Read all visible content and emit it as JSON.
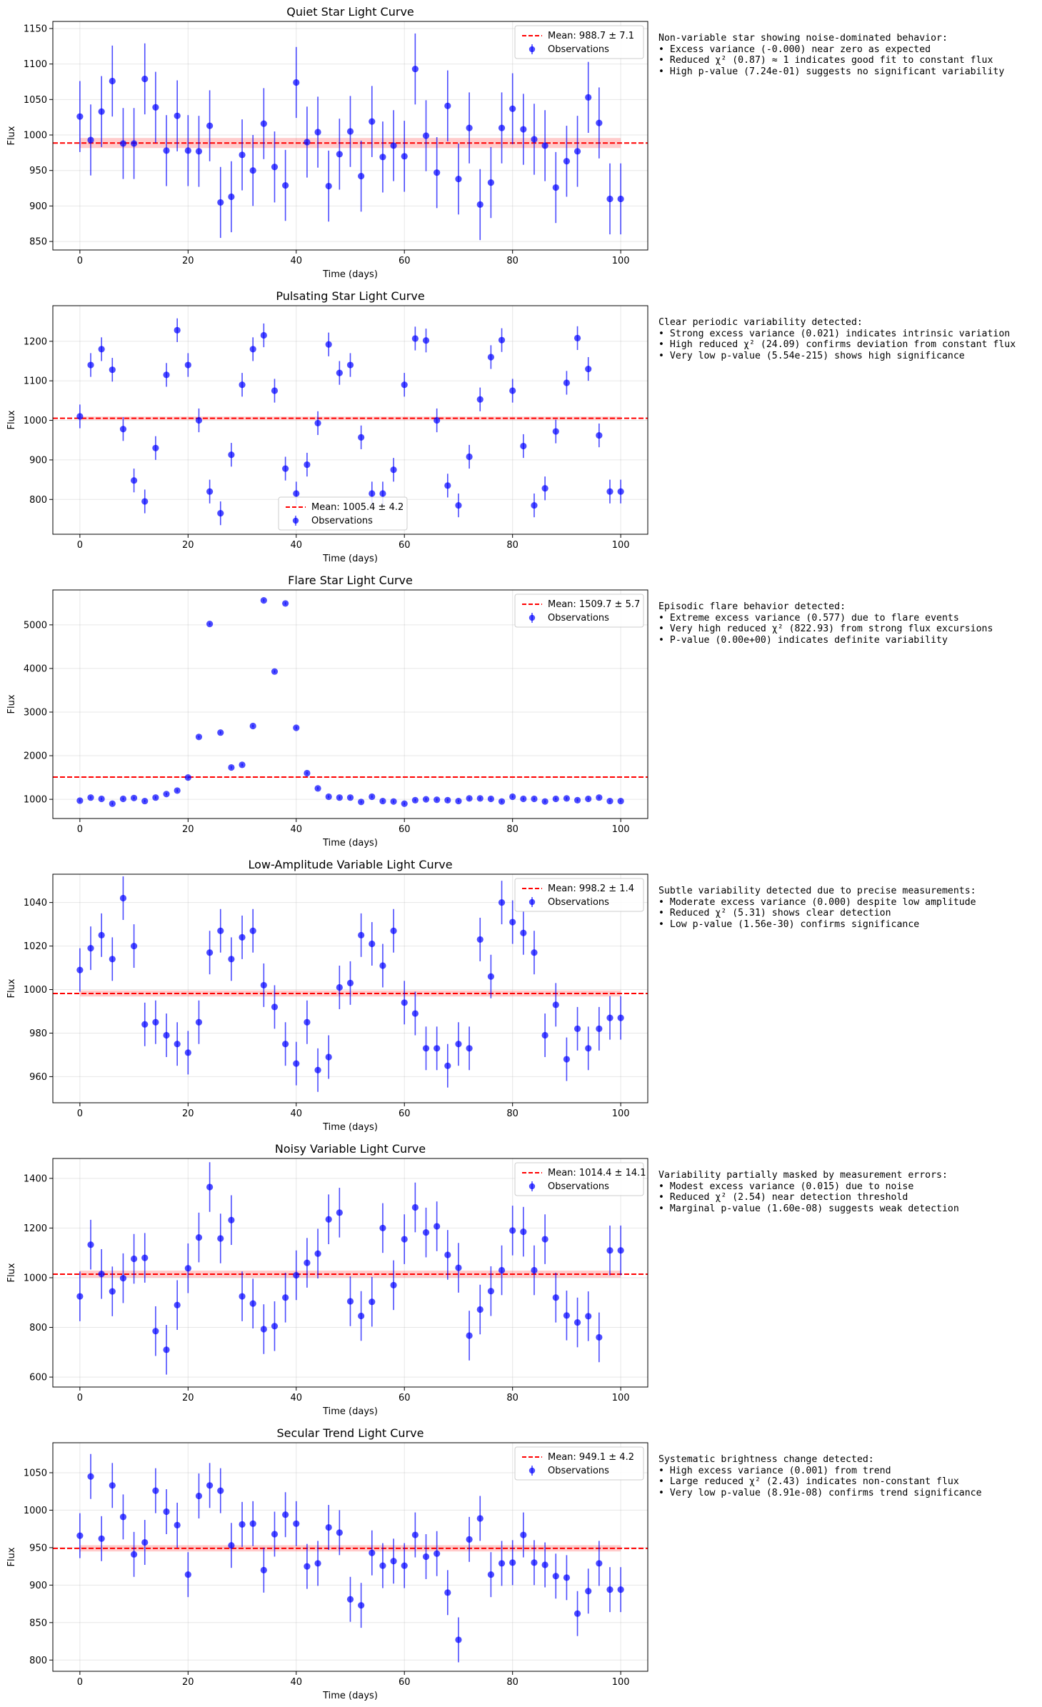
{
  "panels": [
    {
      "title": "Quiet Star Light Curve",
      "xlabel": "Time (days)",
      "ylabel": "Flux",
      "legend": "top-right",
      "mean_label": "Mean: 988.7 ± 7.1",
      "obs_label": "Observations",
      "annotation": "Non-variable star showing noise-dominated behavior:\n• Excess variance (-0.000) near zero as expected\n• Reduced χ² (0.87) ≈ 1 indicates good fit to constant flux\n• High p-value (7.24e-01) suggests no significant variability"
    },
    {
      "title": "Pulsating Star Light Curve",
      "xlabel": "Time (days)",
      "ylabel": "Flux",
      "legend": "lower-center",
      "mean_label": "Mean: 1005.4 ± 4.2",
      "obs_label": "Observations",
      "annotation": "Clear periodic variability detected:\n• Strong excess variance (0.021) indicates intrinsic variation\n• High reduced χ² (24.09) confirms deviation from constant flux\n• Very low p-value (5.54e-215) shows high significance"
    },
    {
      "title": "Flare Star Light Curve",
      "xlabel": "Time (days)",
      "ylabel": "Flux",
      "legend": "top-right",
      "mean_label": "Mean: 1509.7 ± 5.7",
      "obs_label": "Observations",
      "annotation": "Episodic flare behavior detected:\n• Extreme excess variance (0.577) due to flare events\n• Very high reduced χ² (822.93) from strong flux excursions\n• P-value (0.00e+00) indicates definite variability"
    },
    {
      "title": "Low-Amplitude Variable Light Curve",
      "xlabel": "Time (days)",
      "ylabel": "Flux",
      "legend": "top-right",
      "mean_label": "Mean: 998.2 ± 1.4",
      "obs_label": "Observations",
      "annotation": "Subtle variability detected due to precise measurements:\n• Moderate excess variance (0.000) despite low amplitude\n• Reduced χ² (5.31) shows clear detection\n• Low p-value (1.56e-30) confirms significance"
    },
    {
      "title": "Noisy Variable Light Curve",
      "xlabel": "Time (days)",
      "ylabel": "Flux",
      "legend": "top-right",
      "mean_label": "Mean: 1014.4 ± 14.1",
      "obs_label": "Observations",
      "annotation": "Variability partially masked by measurement errors:\n• Modest excess variance (0.015) due to noise\n• Reduced χ² (2.54) near detection threshold\n• Marginal p-value (1.60e-08) suggests weak detection"
    },
    {
      "title": "Secular Trend Light Curve",
      "xlabel": "Time (days)",
      "ylabel": "Flux",
      "legend": "top-right",
      "mean_label": "Mean: 949.1 ± 4.2",
      "obs_label": "Observations",
      "annotation": "Systematic brightness change detected:\n• High excess variance (0.001) from trend\n• Large reduced χ² (2.43) indicates non-constant flux\n• Very low p-value (8.91e-08) confirms trend significance"
    }
  ],
  "chart_data": [
    {
      "type": "scatter",
      "title": "Quiet Star Light Curve",
      "xlabel": "Time (days)",
      "ylabel": "Flux",
      "xlim": [
        -5,
        105
      ],
      "ylim": [
        838,
        1160
      ],
      "xticks": [
        0,
        20,
        40,
        60,
        80,
        100
      ],
      "yticks": [
        850,
        900,
        950,
        1000,
        1050,
        1100,
        1150
      ],
      "grid": true,
      "mean": 988.7,
      "mean_err": 7.1,
      "marker_color": "#0000ff",
      "mean_color": "#ff0000",
      "series": [
        {
          "name": "Observations",
          "error": 50,
          "x": [
            0,
            2,
            4,
            6,
            8,
            10,
            12,
            14,
            16,
            18,
            20,
            22,
            24,
            26,
            28,
            30,
            32,
            34,
            36,
            38,
            40,
            42,
            44,
            46,
            48,
            50,
            52,
            54,
            56,
            58,
            60,
            62,
            64,
            66,
            68,
            70,
            72,
            74,
            76,
            78,
            80,
            82,
            84,
            86,
            88,
            90,
            92,
            94,
            96,
            98,
            100
          ],
          "y": [
            1026,
            993,
            1033,
            1076,
            988,
            988,
            1079,
            1039,
            978,
            1027,
            978,
            977,
            1013,
            905,
            913,
            972,
            950,
            1016,
            955,
            929,
            1074,
            990,
            1004,
            928,
            973,
            1005,
            942,
            1019,
            969,
            985,
            970,
            1093,
            999,
            947,
            1041,
            938,
            1010,
            902,
            933,
            1010,
            1037,
            1008,
            994,
            985,
            926,
            963,
            977,
            1053,
            1017,
            910,
            910
          ]
        }
      ]
    },
    {
      "type": "scatter",
      "title": "Pulsating Star Light Curve",
      "xlabel": "Time (days)",
      "ylabel": "Flux",
      "xlim": [
        -5,
        105
      ],
      "ylim": [
        712,
        1290
      ],
      "xticks": [
        0,
        20,
        40,
        60,
        80,
        100
      ],
      "yticks": [
        800,
        900,
        1000,
        1100,
        1200
      ],
      "grid": true,
      "mean": 1005.4,
      "mean_err": 4.2,
      "marker_color": "#0000ff",
      "mean_color": "#ff0000",
      "series": [
        {
          "name": "Observations",
          "error": 30,
          "x": [
            0,
            2,
            4,
            6,
            8,
            10,
            12,
            14,
            16,
            18,
            20,
            22,
            24,
            26,
            28,
            30,
            32,
            34,
            36,
            38,
            40,
            42,
            44,
            46,
            48,
            50,
            52,
            54,
            56,
            58,
            60,
            62,
            64,
            66,
            68,
            70,
            72,
            74,
            76,
            78,
            80,
            82,
            84,
            86,
            88,
            90,
            92,
            94,
            96,
            98,
            100
          ],
          "y": [
            1010,
            1140,
            1180,
            1128,
            978,
            848,
            795,
            930,
            1115,
            1228,
            1140,
            1000,
            820,
            765,
            913,
            1090,
            1180,
            1215,
            1075,
            878,
            815,
            888,
            993,
            1192,
            1120,
            1140,
            957,
            815,
            815,
            875,
            1090,
            1207,
            1202,
            1000,
            835,
            785,
            908,
            1053,
            1160,
            1203,
            1075,
            935,
            785,
            828,
            972,
            1095,
            1208,
            1130,
            962,
            820,
            820
          ]
        }
      ]
    },
    {
      "type": "scatter",
      "title": "Flare Star Light Curve",
      "xlabel": "Time (days)",
      "ylabel": "Flux",
      "xlim": [
        -5,
        105
      ],
      "ylim": [
        560,
        5800
      ],
      "xticks": [
        0,
        20,
        40,
        60,
        80,
        100
      ],
      "yticks": [
        1000,
        2000,
        3000,
        4000,
        5000
      ],
      "grid": true,
      "mean": 1509.7,
      "mean_err": 5.7,
      "marker_color": "#0000ff",
      "mean_color": "#ff0000",
      "series": [
        {
          "name": "Observations",
          "error": 30,
          "x": [
            0,
            2,
            4,
            6,
            8,
            10,
            12,
            14,
            16,
            18,
            20,
            22,
            24,
            26,
            28,
            30,
            32,
            34,
            36,
            38,
            40,
            42,
            44,
            46,
            48,
            50,
            52,
            54,
            56,
            58,
            60,
            62,
            64,
            66,
            68,
            70,
            72,
            74,
            76,
            78,
            80,
            82,
            84,
            86,
            88,
            90,
            92,
            94,
            96,
            98,
            100
          ],
          "y": [
            970,
            1040,
            1010,
            900,
            1010,
            1030,
            960,
            1040,
            1120,
            1200,
            1500,
            2430,
            5020,
            2530,
            1730,
            1790,
            2680,
            5560,
            3930,
            5490,
            2640,
            1600,
            1250,
            1060,
            1040,
            1040,
            940,
            1060,
            960,
            950,
            900,
            980,
            1000,
            990,
            980,
            960,
            1020,
            1020,
            1010,
            950,
            1060,
            1010,
            1010,
            950,
            1010,
            1020,
            980,
            1010,
            1040,
            960,
            960
          ]
        }
      ]
    },
    {
      "type": "scatter",
      "title": "Low-Amplitude Variable Light Curve",
      "xlabel": "Time (days)",
      "ylabel": "Flux",
      "xlim": [
        -5,
        105
      ],
      "ylim": [
        948,
        1053
      ],
      "xticks": [
        0,
        20,
        40,
        60,
        80,
        100
      ],
      "yticks": [
        960,
        980,
        1000,
        1020,
        1040
      ],
      "grid": true,
      "mean": 998.2,
      "mean_err": 1.4,
      "marker_color": "#0000ff",
      "mean_color": "#ff0000",
      "series": [
        {
          "name": "Observations",
          "error": 10,
          "x": [
            0,
            2,
            4,
            6,
            8,
            10,
            12,
            14,
            16,
            18,
            20,
            22,
            24,
            26,
            28,
            30,
            32,
            34,
            36,
            38,
            40,
            42,
            44,
            46,
            48,
            50,
            52,
            54,
            56,
            58,
            60,
            62,
            64,
            66,
            68,
            70,
            72,
            74,
            76,
            78,
            80,
            82,
            84,
            86,
            88,
            90,
            92,
            94,
            96,
            98,
            100
          ],
          "y": [
            1009,
            1019,
            1025,
            1014,
            1042,
            1020,
            984,
            985,
            979,
            975,
            971,
            985,
            1017,
            1027,
            1014,
            1024,
            1027,
            1002,
            992,
            975,
            966,
            985,
            963,
            969,
            1001,
            1003,
            1025,
            1021,
            1011,
            1027,
            994,
            989,
            973,
            973,
            965,
            975,
            973,
            1023,
            1006,
            1040,
            1031,
            1026,
            1017,
            979,
            993,
            968,
            982,
            973,
            982,
            987,
            987
          ]
        }
      ]
    },
    {
      "type": "scatter",
      "title": "Noisy Variable Light Curve",
      "xlabel": "Time (days)",
      "ylabel": "Flux",
      "xlim": [
        -5,
        105
      ],
      "ylim": [
        560,
        1480
      ],
      "xticks": [
        0,
        20,
        40,
        60,
        80,
        100
      ],
      "yticks": [
        600,
        800,
        1000,
        1200,
        1400
      ],
      "grid": true,
      "mean": 1014.4,
      "mean_err": 14.1,
      "marker_color": "#0000ff",
      "mean_color": "#ff0000",
      "series": [
        {
          "name": "Observations",
          "error": 100,
          "x": [
            0,
            2,
            4,
            6,
            8,
            10,
            12,
            14,
            16,
            18,
            20,
            22,
            24,
            26,
            28,
            30,
            32,
            34,
            36,
            38,
            40,
            42,
            44,
            46,
            48,
            50,
            52,
            54,
            56,
            58,
            60,
            62,
            64,
            66,
            68,
            70,
            72,
            74,
            76,
            78,
            80,
            82,
            84,
            86,
            88,
            90,
            92,
            94,
            96,
            98,
            100
          ],
          "y": [
            925,
            1133,
            1015,
            945,
            998,
            1076,
            1080,
            785,
            710,
            890,
            1038,
            1162,
            1365,
            1158,
            1232,
            925,
            896,
            793,
            805,
            920,
            1010,
            1060,
            1097,
            1235,
            1262,
            905,
            846,
            903,
            1200,
            970,
            1155,
            1283,
            1182,
            1207,
            1092,
            1040,
            767,
            872,
            946,
            1030,
            1190,
            1185,
            1030,
            1155,
            920,
            848,
            820,
            845,
            760,
            1110,
            1110
          ]
        }
      ]
    },
    {
      "type": "scatter",
      "title": "Secular Trend Light Curve",
      "xlabel": "Time (days)",
      "ylabel": "Flux",
      "xlim": [
        -5,
        105
      ],
      "ylim": [
        785,
        1090
      ],
      "xticks": [
        0,
        20,
        40,
        60,
        80,
        100
      ],
      "yticks": [
        800,
        850,
        900,
        950,
        1000,
        1050
      ],
      "grid": true,
      "mean": 949.1,
      "mean_err": 4.2,
      "marker_color": "#0000ff",
      "mean_color": "#ff0000",
      "series": [
        {
          "name": "Observations",
          "error": 30,
          "x": [
            0,
            2,
            4,
            6,
            8,
            10,
            12,
            14,
            16,
            18,
            20,
            22,
            24,
            26,
            28,
            30,
            32,
            34,
            36,
            38,
            40,
            42,
            44,
            46,
            48,
            50,
            52,
            54,
            56,
            58,
            60,
            62,
            64,
            66,
            68,
            70,
            72,
            74,
            76,
            78,
            80,
            82,
            84,
            86,
            88,
            90,
            92,
            94,
            96,
            98,
            100
          ],
          "y": [
            966,
            1045,
            962,
            1033,
            991,
            941,
            957,
            1026,
            998,
            980,
            914,
            1019,
            1033,
            1026,
            953,
            981,
            982,
            920,
            968,
            994,
            982,
            925,
            929,
            977,
            970,
            881,
            873,
            943,
            926,
            932,
            926,
            967,
            938,
            942,
            890,
            827,
            961,
            989,
            914,
            929,
            930,
            967,
            930,
            927,
            912,
            910,
            862,
            892,
            929,
            894,
            894
          ]
        }
      ]
    }
  ]
}
